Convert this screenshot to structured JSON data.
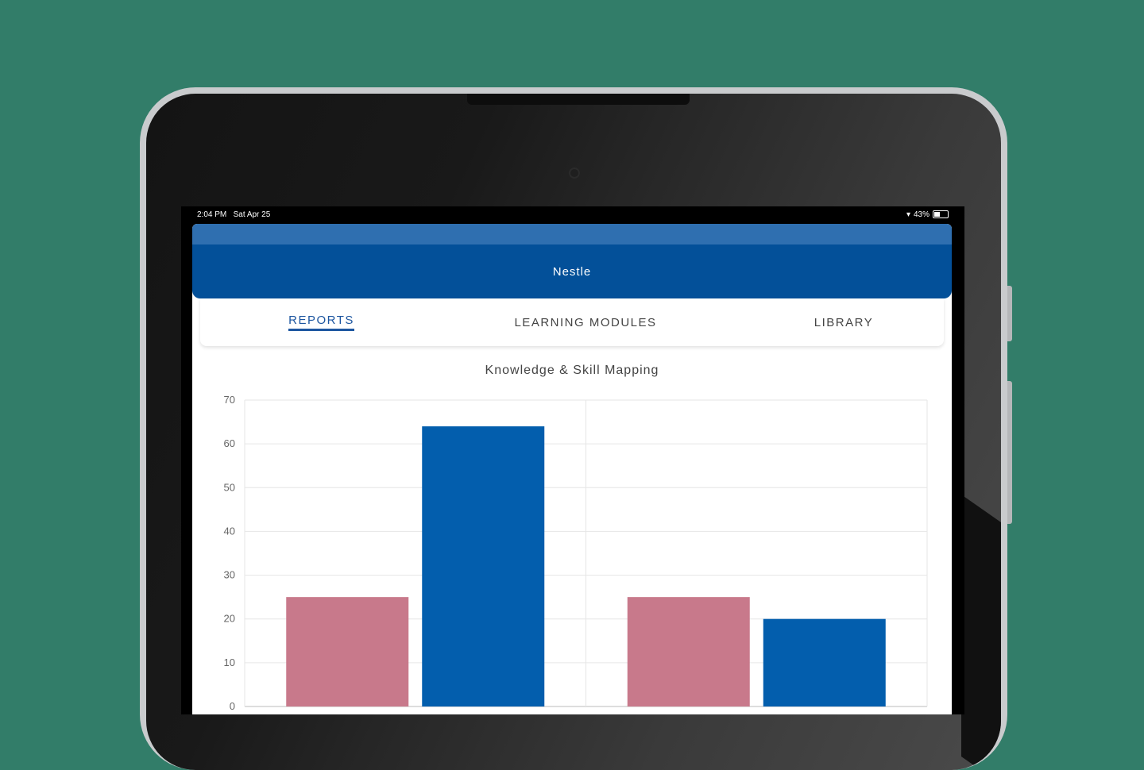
{
  "status_bar": {
    "time": "2:04 PM",
    "date": "Sat Apr 25",
    "battery": "43%",
    "battery_level": 0.43
  },
  "app": {
    "title": "Nestle"
  },
  "tabs": [
    {
      "label": "REPORTS",
      "active": true
    },
    {
      "label": "LEARNING MODULES",
      "active": false
    },
    {
      "label": "LIBRARY",
      "active": false
    }
  ],
  "colors": {
    "background": "#327d69",
    "header": "#035099",
    "accent": "#1d56a0",
    "bar_pink": "#c8798b",
    "bar_blue": "#035ead"
  },
  "chart_data": {
    "type": "bar",
    "title": "Knowledge & Skill Mapping",
    "ylim": [
      0,
      70
    ],
    "yticks": [
      0,
      10,
      20,
      30,
      40,
      50,
      60,
      70
    ],
    "grid": true,
    "groups": 2,
    "series": [
      {
        "values": [
          25,
          25
        ],
        "color": "#c8798b"
      },
      {
        "values": [
          64,
          20
        ],
        "color": "#035ead"
      }
    ]
  }
}
